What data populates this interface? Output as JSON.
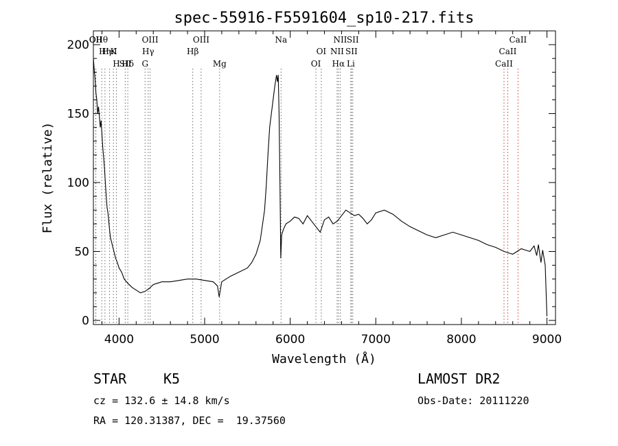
{
  "chart_data": {
    "type": "line",
    "title": "spec-55916-F5591604_sp10-217.fits",
    "xlabel": "Wavelength (Å)",
    "ylabel": "Flux (relative)",
    "xlim": [
      3700,
      9100
    ],
    "ylim": [
      -3,
      210
    ],
    "xticks": [
      4000,
      5000,
      6000,
      7000,
      8000,
      9000
    ],
    "yticks": [
      0,
      50,
      100,
      150,
      200
    ],
    "series": [
      {
        "x": [
          3700,
          3710,
          3720,
          3730,
          3740,
          3750,
          3760,
          3770,
          3780,
          3790,
          3800,
          3810,
          3820,
          3830,
          3840,
          3850,
          3860,
          3870,
          3880,
          3890,
          3900,
          3920,
          3940,
          3960,
          3980,
          4000,
          4030,
          4060,
          4100,
          4150,
          4200,
          4250,
          4300,
          4350,
          4400,
          4450,
          4500,
          4600,
          4700,
          4800,
          4900,
          5000,
          5100,
          5150,
          5170,
          5200,
          5300,
          5400,
          5500,
          5550,
          5600,
          5650,
          5700,
          5720,
          5740,
          5760,
          5780,
          5800,
          5820,
          5840,
          5850,
          5860,
          5870,
          5880,
          5890,
          5900,
          5920,
          5950,
          6000,
          6050,
          6100,
          6150,
          6200,
          6250,
          6300,
          6350,
          6400,
          6450,
          6500,
          6550,
          6600,
          6650,
          6700,
          6750,
          6800,
          6850,
          6900,
          6950,
          7000,
          7100,
          7200,
          7300,
          7400,
          7500,
          7600,
          7700,
          7800,
          7900,
          8000,
          8100,
          8200,
          8300,
          8400,
          8500,
          8600,
          8700,
          8800,
          8850,
          8880,
          8900,
          8930,
          8950,
          8980,
          9000
        ],
        "y": [
          190,
          182,
          175,
          165,
          160,
          150,
          155,
          148,
          140,
          145,
          135,
          125,
          118,
          110,
          100,
          90,
          82,
          78,
          72,
          65,
          60,
          55,
          50,
          45,
          42,
          38,
          35,
          30,
          27,
          24,
          22,
          20,
          21,
          23,
          26,
          27,
          28,
          28,
          29,
          30,
          30,
          29,
          28,
          25,
          17,
          28,
          32,
          35,
          38,
          42,
          48,
          58,
          80,
          98,
          120,
          140,
          150,
          160,
          170,
          178,
          173,
          178,
          150,
          100,
          45,
          62,
          66,
          70,
          72,
          75,
          74,
          70,
          76,
          72,
          68,
          64,
          73,
          75,
          70,
          72,
          76,
          80,
          78,
          76,
          77,
          74,
          70,
          73,
          78,
          80,
          77,
          72,
          68,
          65,
          62,
          60,
          62,
          64,
          62,
          60,
          58,
          55,
          53,
          50,
          48,
          52,
          50,
          54,
          47,
          55,
          42,
          51,
          40,
          3
        ]
      }
    ],
    "lines": [
      {
        "label": "Hθ",
        "wl": 3798
      },
      {
        "label": "K",
        "wl": 3934
      },
      {
        "label": "Hδ",
        "wl": 4102
      },
      {
        "label": "OII",
        "wl": 3727
      },
      {
        "label": "HeI",
        "wl": 3889
      },
      {
        "label": "SII",
        "wl": 4072
      },
      {
        "label": "OIII",
        "wl": 4363
      },
      {
        "label": "Hγ",
        "wl": 4340
      },
      {
        "label": "G",
        "wl": 4304
      },
      {
        "label": "OII",
        "wl": 3729
      },
      {
        "label": "Hη",
        "wl": 3835
      },
      {
        "label": "H",
        "wl": 3969
      },
      {
        "label": "OIII",
        "wl": 4959
      },
      {
        "label": "Hβ",
        "wl": 4861
      },
      {
        "label": "Mg",
        "wl": 5175
      },
      {
        "label": "Na",
        "wl": 5893
      },
      {
        "label": "OI",
        "wl": 6363
      },
      {
        "label": "OI",
        "wl": 6300
      },
      {
        "label": "NII",
        "wl": 6584
      },
      {
        "label": "SII",
        "wl": 6716
      },
      {
        "label": "Hα",
        "wl": 6563
      },
      {
        "label": "SII",
        "wl": 6731
      },
      {
        "label": "NII",
        "wl": 6548
      },
      {
        "label": "Li",
        "wl": 6708
      },
      {
        "label": "CaII",
        "wl": 8662
      },
      {
        "label": "CaII",
        "wl": 8542
      },
      {
        "label": "CaII",
        "wl": 8498
      }
    ]
  },
  "info": {
    "class": "STAR",
    "subclass": "K5",
    "survey": "LAMOST DR2",
    "cz": "cz = 132.6 ± 14.8 km/s",
    "obs_date": "Obs-Date: 20111220",
    "coords": "RA = 120.31387, DEC =  19.37560"
  }
}
